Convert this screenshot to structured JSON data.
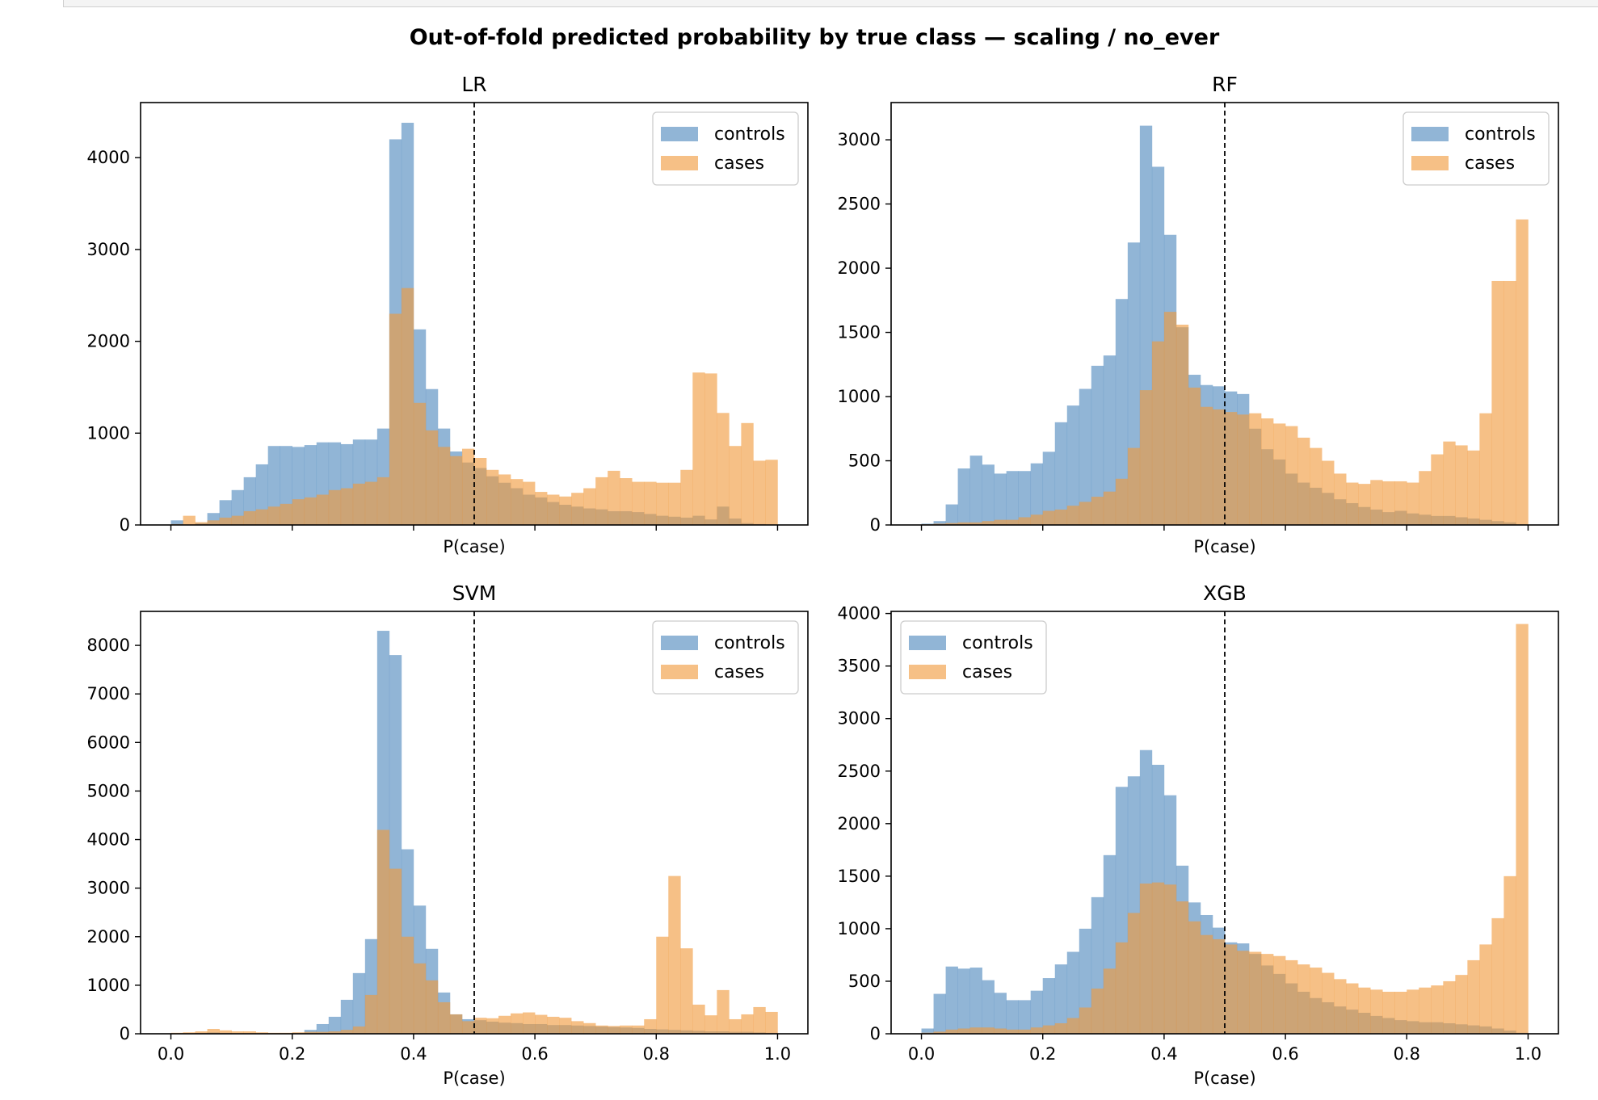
{
  "figure": {
    "suptitle": "Out-of-fold predicted probability by true class — scaling / no_ever"
  },
  "colors": {
    "controls": "#4e88bd",
    "cases": "#f09a3c",
    "threshold": "#000000"
  },
  "chart_data": [
    {
      "type": "histogram",
      "title": "LR",
      "xlabel": "P(case)",
      "ylabel": "",
      "xlim": [
        -0.05,
        1.05
      ],
      "ylim": [
        0,
        4600
      ],
      "yticks": [
        0,
        1000,
        2000,
        3000,
        4000
      ],
      "xticks": [
        0.0,
        0.2,
        0.4,
        0.6,
        0.8,
        1.0
      ],
      "show_xticklabels": false,
      "threshold": 0.5,
      "legend": "top-right",
      "bin_start": 0.0,
      "bin_end": 1.0,
      "bins": 50,
      "series": [
        {
          "name": "controls",
          "values": [
            50,
            0,
            20,
            130,
            270,
            380,
            520,
            660,
            860,
            860,
            850,
            870,
            900,
            900,
            880,
            930,
            930,
            1050,
            4200,
            4380,
            2130,
            1480,
            1050,
            800,
            680,
            620,
            530,
            460,
            400,
            330,
            300,
            250,
            220,
            200,
            180,
            170,
            150,
            150,
            140,
            120,
            100,
            90,
            80,
            100,
            60,
            200,
            70,
            20,
            10,
            5
          ]
        },
        {
          "name": "cases",
          "values": [
            10,
            100,
            30,
            50,
            80,
            100,
            150,
            170,
            200,
            230,
            280,
            300,
            330,
            380,
            400,
            450,
            470,
            520,
            2300,
            2580,
            1330,
            1030,
            850,
            750,
            830,
            730,
            600,
            550,
            500,
            470,
            360,
            330,
            310,
            350,
            400,
            520,
            590,
            510,
            470,
            470,
            460,
            460,
            600,
            1660,
            1650,
            1220,
            860,
            1110,
            700,
            710
          ]
        }
      ]
    },
    {
      "type": "histogram",
      "title": "RF",
      "xlabel": "P(case)",
      "ylabel": "",
      "xlim": [
        -0.05,
        1.05
      ],
      "ylim": [
        0,
        3290
      ],
      "yticks": [
        0,
        500,
        1000,
        1500,
        2000,
        2500,
        3000
      ],
      "xticks": [
        0.0,
        0.2,
        0.4,
        0.6,
        0.8,
        1.0
      ],
      "show_xticklabels": false,
      "threshold": 0.5,
      "legend": "top-right",
      "bin_start": 0.0,
      "bin_end": 1.0,
      "bins": 50,
      "series": [
        {
          "name": "controls",
          "values": [
            10,
            30,
            160,
            440,
            540,
            470,
            400,
            420,
            420,
            480,
            570,
            800,
            930,
            1060,
            1240,
            1320,
            1760,
            2200,
            3110,
            2790,
            2260,
            1540,
            1170,
            1090,
            1080,
            1040,
            1020,
            750,
            590,
            510,
            400,
            330,
            290,
            250,
            200,
            170,
            140,
            120,
            100,
            110,
            90,
            80,
            70,
            70,
            60,
            50,
            40,
            30,
            20,
            5
          ]
        },
        {
          "name": "cases",
          "values": [
            5,
            10,
            15,
            20,
            20,
            30,
            40,
            40,
            60,
            80,
            110,
            120,
            150,
            180,
            220,
            260,
            360,
            600,
            1050,
            1430,
            1660,
            1560,
            1070,
            920,
            900,
            880,
            860,
            870,
            830,
            790,
            770,
            680,
            600,
            500,
            400,
            330,
            320,
            350,
            340,
            340,
            330,
            420,
            550,
            650,
            620,
            580,
            870,
            1900,
            1900,
            2380
          ]
        }
      ]
    },
    {
      "type": "histogram",
      "title": "SVM",
      "xlabel": "P(case)",
      "ylabel": "",
      "xlim": [
        -0.05,
        1.05
      ],
      "ylim": [
        0,
        8700
      ],
      "yticks": [
        0,
        1000,
        2000,
        3000,
        4000,
        5000,
        6000,
        7000,
        8000
      ],
      "xticks": [
        0.0,
        0.2,
        0.4,
        0.6,
        0.8,
        1.0
      ],
      "xticklabels": [
        "0.0",
        "0.2",
        "0.4",
        "0.6",
        "0.8",
        "1.0"
      ],
      "show_xticklabels": true,
      "threshold": 0.5,
      "legend": "top-right",
      "bin_start": 0.0,
      "bin_end": 1.0,
      "bins": 50,
      "series": [
        {
          "name": "controls",
          "values": [
            0,
            10,
            20,
            30,
            20,
            10,
            10,
            10,
            5,
            5,
            20,
            80,
            200,
            350,
            700,
            1250,
            1950,
            8300,
            7800,
            3800,
            2640,
            1750,
            850,
            400,
            300,
            280,
            250,
            230,
            220,
            200,
            200,
            180,
            180,
            170,
            160,
            150,
            140,
            130,
            120,
            100,
            90,
            80,
            70,
            60,
            50,
            50,
            40,
            40,
            30,
            20
          ]
        },
        {
          "name": "cases",
          "values": [
            20,
            30,
            50,
            100,
            70,
            50,
            50,
            30,
            20,
            20,
            30,
            40,
            40,
            50,
            80,
            150,
            800,
            4200,
            3400,
            2000,
            1450,
            1100,
            650,
            400,
            260,
            330,
            320,
            370,
            420,
            440,
            390,
            350,
            330,
            260,
            220,
            170,
            160,
            170,
            170,
            300,
            2000,
            3250,
            1760,
            600,
            380,
            900,
            300,
            400,
            550,
            450
          ]
        }
      ]
    },
    {
      "type": "histogram",
      "title": "XGB",
      "xlabel": "P(case)",
      "ylabel": "",
      "xlim": [
        -0.05,
        1.05
      ],
      "ylim": [
        0,
        4020
      ],
      "yticks": [
        0,
        500,
        1000,
        1500,
        2000,
        2500,
        3000,
        3500,
        4000
      ],
      "xticks": [
        0.0,
        0.2,
        0.4,
        0.6,
        0.8,
        1.0
      ],
      "xticklabels": [
        "0.0",
        "0.2",
        "0.4",
        "0.6",
        "0.8",
        "1.0"
      ],
      "show_xticklabels": true,
      "threshold": 0.5,
      "legend": "top-left",
      "bin_start": 0.0,
      "bin_end": 1.0,
      "bins": 50,
      "series": [
        {
          "name": "controls",
          "values": [
            50,
            380,
            640,
            620,
            630,
            510,
            390,
            320,
            320,
            410,
            530,
            660,
            780,
            1000,
            1300,
            1700,
            2350,
            2450,
            2700,
            2560,
            2270,
            1600,
            1250,
            1130,
            1010,
            870,
            860,
            760,
            650,
            570,
            480,
            400,
            340,
            300,
            260,
            230,
            200,
            170,
            150,
            130,
            120,
            110,
            110,
            100,
            90,
            80,
            70,
            50,
            30,
            10
          ]
        },
        {
          "name": "cases",
          "values": [
            10,
            20,
            40,
            50,
            60,
            60,
            50,
            40,
            40,
            60,
            80,
            100,
            150,
            250,
            430,
            620,
            870,
            1150,
            1430,
            1440,
            1420,
            1260,
            1070,
            940,
            900,
            850,
            790,
            780,
            760,
            740,
            700,
            660,
            630,
            580,
            520,
            480,
            440,
            420,
            400,
            400,
            420,
            440,
            460,
            500,
            560,
            700,
            850,
            1100,
            1500,
            3900
          ]
        }
      ]
    }
  ]
}
